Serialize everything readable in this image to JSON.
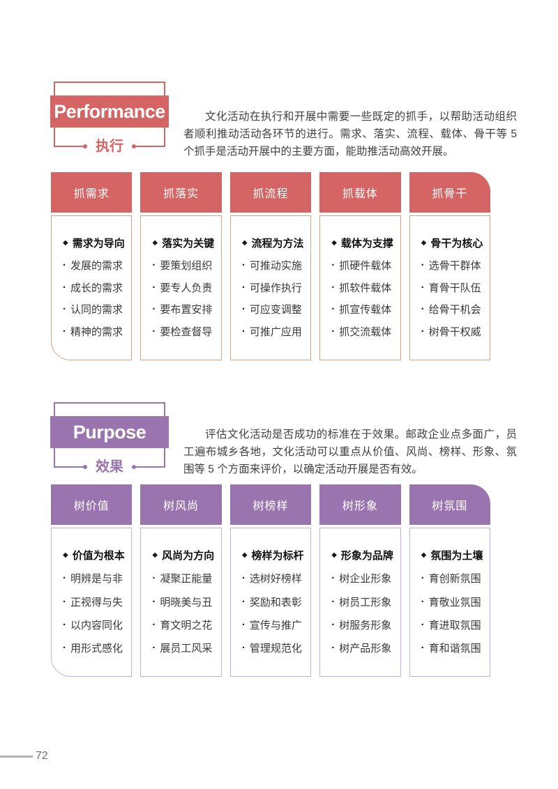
{
  "markers": {
    "title": "◆",
    "item": "·"
  },
  "footer": {
    "page_number": "72"
  },
  "sections": [
    {
      "title_en": "Performance",
      "title_zh": "执行",
      "accent": "#d56565",
      "card_border": "#dca286",
      "intro": "文化活动在执行和开展中需要一些既定的抓手，以帮助活动组织者顺利推动活动各环节的进行。需求、落实、流程、载体、骨干等 5 个抓手是活动开展中的主要方面，能助推活动高效开展。",
      "columns": [
        {
          "header": "抓需求",
          "title": "需求为导向",
          "items": [
            "发展的需求",
            "成长的需求",
            "认同的需求",
            "精神的需求"
          ]
        },
        {
          "header": "抓落实",
          "title": "落实为关键",
          "items": [
            "要策划组织",
            "要专人负责",
            "要布置安排",
            "要检查督导"
          ]
        },
        {
          "header": "抓流程",
          "title": "流程为方法",
          "items": [
            "可推动实施",
            "可操作执行",
            "可应变调整",
            "可推广应用"
          ]
        },
        {
          "header": "抓载体",
          "title": "载体为支撑",
          "items": [
            "抓硬件载体",
            "抓软件载体",
            "抓宣传载体",
            "抓交流载体"
          ]
        },
        {
          "header": "抓骨干",
          "title": "骨干为核心",
          "items": [
            "选骨干群体",
            "育骨干队伍",
            "给骨干机会",
            "树骨干权威"
          ]
        }
      ]
    },
    {
      "title_en": "Purpose",
      "title_zh": "效果",
      "accent": "#9a74ae",
      "card_border": "#c3afd3",
      "intro": "评估文化活动是否成功的标准在于效果。邮政企业点多面广，员工遍布城乡各地，文化活动可以重点从价值、风尚、榜样、形象、氛围等 5 个方面来评价，以确定活动开展是否有效。",
      "columns": [
        {
          "header": "树价值",
          "title": "价值为根本",
          "items": [
            "明辨是与非",
            "正视得与失",
            "以内容同化",
            "用形式感化"
          ]
        },
        {
          "header": "树风尚",
          "title": "风尚为方向",
          "items": [
            "凝聚正能量",
            "明晓美与丑",
            "育文明之花",
            "展员工风采"
          ]
        },
        {
          "header": "树榜样",
          "title": "榜样为标杆",
          "items": [
            "选树好榜样",
            "奖励和表彰",
            "宣传与推广",
            "管理规范化"
          ]
        },
        {
          "header": "树形象",
          "title": "形象为品牌",
          "items": [
            "树企业形象",
            "树员工形象",
            "树服务形象",
            "树产品形象"
          ]
        },
        {
          "header": "树氛围",
          "title": "氛围为土壤",
          "items": [
            "育创新氛围",
            "育敬业氛围",
            "育进取氛围",
            "育和谐氛围"
          ]
        }
      ]
    }
  ]
}
